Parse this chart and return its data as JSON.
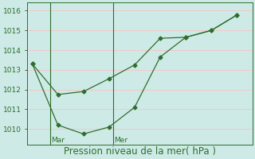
{
  "line1_x": [
    0,
    1,
    2,
    3,
    4,
    5,
    6,
    7,
    8
  ],
  "line1_y": [
    1013.3,
    1011.75,
    1011.9,
    1012.55,
    1013.25,
    1014.6,
    1014.65,
    1015.0,
    1015.78
  ],
  "line2_x": [
    0,
    1,
    2,
    3,
    4,
    5,
    6,
    7,
    8
  ],
  "line2_y": [
    1013.3,
    1010.2,
    1009.75,
    1010.1,
    1011.1,
    1013.65,
    1014.65,
    1015.0,
    1015.78
  ],
  "line_color": "#2d6e2d",
  "marker": "D",
  "markersize": 2.5,
  "linewidth": 0.9,
  "background_color": "#ceeae6",
  "grid_color": "#f0c8c8",
  "yticks": [
    1010,
    1011,
    1012,
    1013,
    1014,
    1015,
    1016
  ],
  "ylim": [
    1009.2,
    1016.4
  ],
  "xlim": [
    -0.2,
    8.6
  ],
  "xlabel": "Pression niveau de la mer( hPa )",
  "xlabel_fontsize": 8.5,
  "tick_fontsize": 6.5,
  "vline_x": [
    0.7,
    3.15
  ],
  "vline_labels": [
    "Mar",
    "Mer"
  ],
  "vline_color": "#2d6e2d",
  "text_color": "#2d6e2d",
  "spine_color": "#2d6e2d"
}
